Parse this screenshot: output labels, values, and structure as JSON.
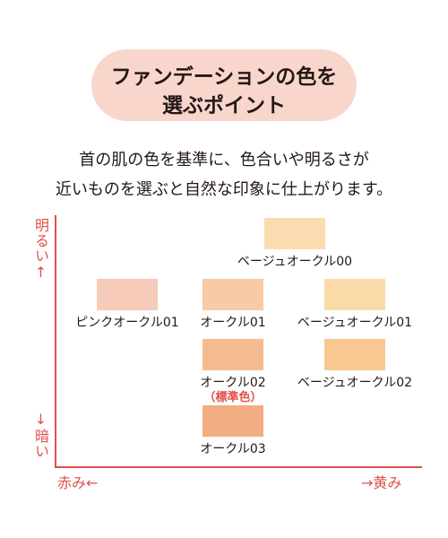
{
  "header": {
    "title_lines": [
      "ファンデーションの色を",
      "選ぶポイント"
    ]
  },
  "description_lines": [
    "首の肌の色を基準に、色合いや明るさが",
    "近いものを選ぶと自然な印象に仕上がります。"
  ],
  "axes": {
    "y_top": "明るい↑",
    "y_bottom": "↓暗い",
    "x_left": "赤み←",
    "x_right": "→黄み"
  },
  "swatches": [
    {
      "label": "ベージュオークル00",
      "color": "#fbdcb0"
    },
    {
      "label": "ピンクオークル01",
      "color": "#f6cbb9"
    },
    {
      "label": "オークル01",
      "color": "#f8caa6"
    },
    {
      "label": "ベージュオークル01",
      "color": "#fbdca9"
    },
    {
      "label": "オークル02",
      "color": "#f6ba91",
      "note": "（標準色）"
    },
    {
      "label": "ベージュオークル02",
      "color": "#f7c990"
    },
    {
      "label": "オークル03",
      "color": "#f3ad82"
    }
  ]
}
